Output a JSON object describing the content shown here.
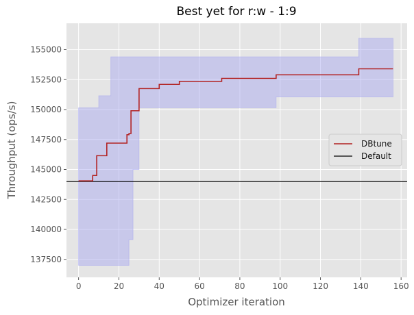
{
  "chart_data": {
    "type": "line",
    "title": "Best yet for r:w - 1:9",
    "xlabel": "Optimizer iteration",
    "ylabel": "Throughput (ops/s)",
    "xlim": [
      -6,
      163
    ],
    "ylim": [
      136000,
      157200
    ],
    "xticks": [
      0,
      20,
      40,
      60,
      80,
      100,
      120,
      140,
      160
    ],
    "yticks": [
      137500,
      140000,
      142500,
      145000,
      147500,
      150000,
      152500,
      155000
    ],
    "grid": true,
    "legend_position": "center-right",
    "series": [
      {
        "name": "DBtune",
        "color": "#b22222",
        "x": [
          0,
          7,
          7,
          9,
          9,
          10,
          10,
          14,
          14,
          16,
          16,
          24,
          24,
          25,
          25,
          26,
          26,
          27,
          27,
          30,
          30,
          40,
          40,
          50,
          50,
          71,
          71,
          98,
          98,
          139,
          139,
          156
        ],
        "y": [
          144050,
          144050,
          144500,
          144500,
          146150,
          146150,
          146150,
          146150,
          147200,
          147200,
          147200,
          147200,
          147900,
          147900,
          148000,
          148000,
          149900,
          149900,
          149900,
          149900,
          151750,
          151750,
          152100,
          152100,
          152350,
          152350,
          152600,
          152600,
          152900,
          152900,
          153400,
          153400
        ]
      },
      {
        "name": "Default",
        "color": "#000000",
        "value": 144000
      }
    ],
    "band": {
      "color": "#a3a3f0",
      "x": [
        0,
        7,
        9,
        10,
        14,
        16,
        24,
        25,
        26,
        27,
        30,
        40,
        50,
        71,
        97,
        98,
        139,
        156
      ],
      "lower": [
        137000,
        137000,
        137000,
        137000,
        137000,
        137000,
        137000,
        139150,
        139150,
        145000,
        150150,
        150150,
        150150,
        150150,
        150150,
        151050,
        151050,
        151050
      ],
      "upper": [
        150150,
        150150,
        150150,
        151150,
        151150,
        154400,
        154400,
        154400,
        154400,
        154400,
        154400,
        154400,
        154400,
        154400,
        154400,
        154400,
        155950,
        155950
      ]
    }
  }
}
